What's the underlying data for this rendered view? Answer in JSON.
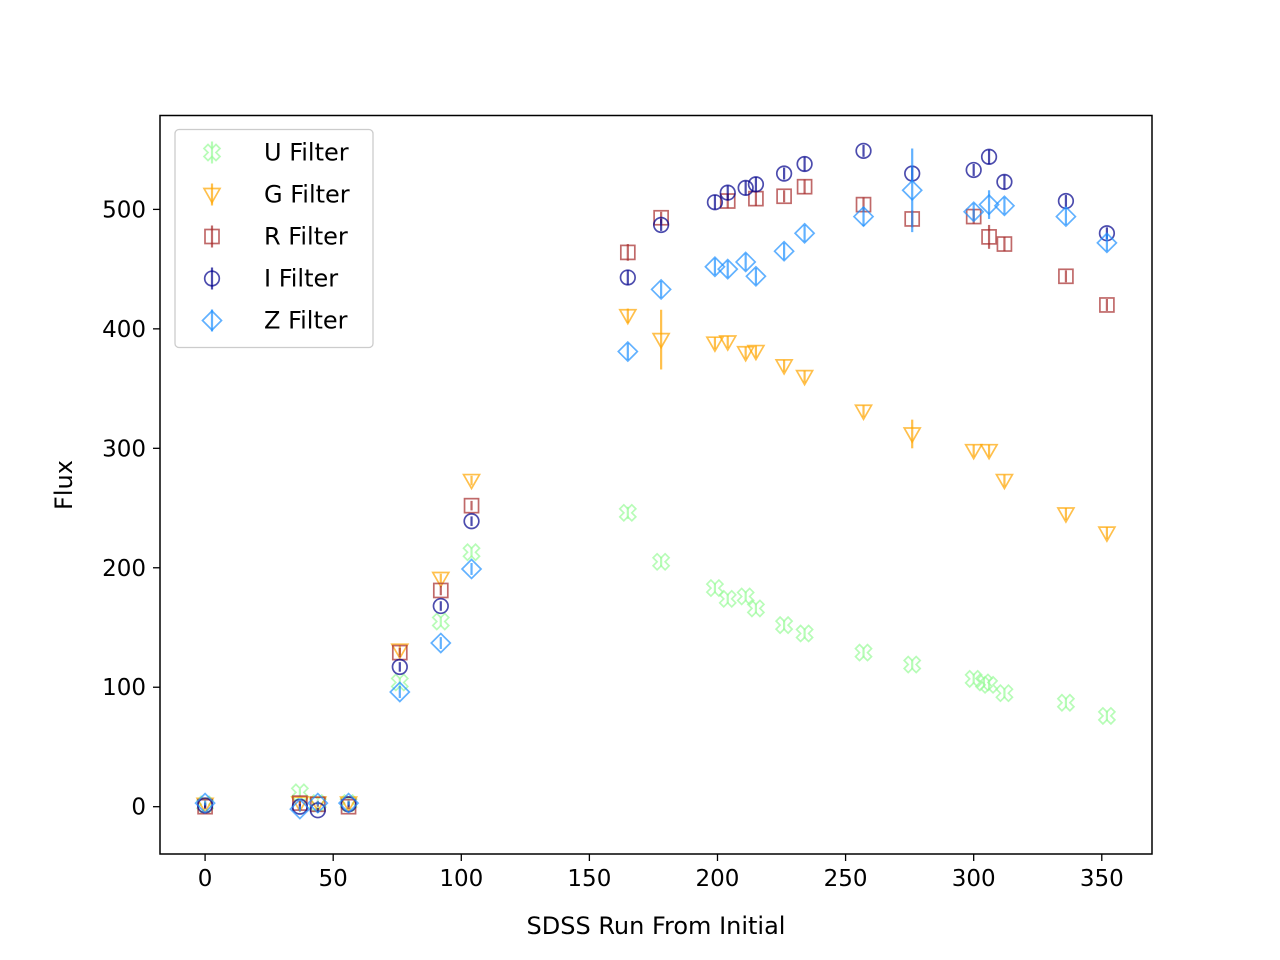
{
  "chart_data": {
    "type": "scatter",
    "title": "",
    "xlabel": "SDSS Run From Initial",
    "ylabel": "Flux",
    "xlim": [
      -17.6,
      369.6
    ],
    "ylim": [
      -39.6,
      578.6
    ],
    "x_ticks": [
      0,
      50,
      100,
      150,
      200,
      250,
      300,
      350
    ],
    "y_ticks": [
      0,
      100,
      200,
      300,
      400,
      500
    ],
    "grid": false,
    "legend_position": "upper-left",
    "series": [
      {
        "name": "U Filter",
        "marker": "x-filled",
        "color": "#98fb98",
        "x": [
          0,
          37,
          44,
          56,
          76,
          92,
          104,
          165,
          178,
          199,
          204,
          211,
          215,
          226,
          234,
          257,
          276,
          300,
          304,
          306,
          312,
          336,
          352
        ],
        "y": [
          2,
          12,
          3,
          3,
          104,
          155,
          213,
          246,
          205,
          183,
          174,
          176,
          166,
          152,
          145,
          129,
          119,
          107,
          104,
          102,
          95,
          87,
          76
        ],
        "err": [
          2,
          3,
          2,
          2,
          4,
          4,
          4,
          5,
          4,
          4,
          4,
          4,
          4,
          4,
          4,
          4,
          4,
          4,
          4,
          4,
          4,
          4,
          4
        ]
      },
      {
        "name": "G Filter",
        "marker": "triangle-down",
        "color": "#ffa500",
        "x": [
          0,
          37,
          44,
          56,
          76,
          92,
          104,
          165,
          178,
          199,
          204,
          211,
          215,
          226,
          234,
          257,
          276,
          300,
          306,
          312,
          336,
          352
        ],
        "y": [
          2,
          3,
          3,
          3,
          131,
          191,
          273,
          411,
          391,
          388,
          389,
          380,
          381,
          369,
          360,
          331,
          312,
          298,
          298,
          273,
          245,
          229
        ],
        "err": [
          2,
          2,
          2,
          2,
          4,
          4,
          4,
          6,
          25,
          5,
          5,
          5,
          5,
          5,
          5,
          5,
          12,
          5,
          5,
          5,
          5,
          5
        ]
      },
      {
        "name": "R Filter",
        "marker": "square",
        "color": "#a52a2a",
        "x": [
          0,
          37,
          44,
          56,
          76,
          92,
          104,
          165,
          178,
          204,
          215,
          226,
          234,
          257,
          276,
          300,
          306,
          312,
          336,
          352
        ],
        "y": [
          0,
          3,
          2,
          0,
          129,
          181,
          252,
          464,
          493,
          507,
          509,
          511,
          519,
          504,
          492,
          494,
          477,
          471,
          444,
          420
        ],
        "err": [
          2,
          2,
          2,
          2,
          4,
          4,
          4,
          7,
          5,
          6,
          6,
          5,
          6,
          6,
          7,
          6,
          10,
          6,
          5,
          5
        ]
      },
      {
        "name": "I Filter",
        "marker": "circle",
        "color": "#00008b",
        "x": [
          0,
          37,
          44,
          56,
          76,
          92,
          104,
          165,
          178,
          199,
          204,
          211,
          215,
          226,
          234,
          257,
          276,
          300,
          306,
          312,
          336,
          352
        ],
        "y": [
          1,
          0,
          -3,
          2,
          117,
          168,
          239,
          443,
          487,
          506,
          514,
          518,
          521,
          530,
          538,
          549,
          530,
          533,
          544,
          523,
          507,
          480
        ],
        "err": [
          2,
          2,
          2,
          2,
          4,
          4,
          4,
          6,
          5,
          6,
          6,
          6,
          6,
          5,
          6,
          5,
          6,
          5,
          6,
          6,
          5,
          5
        ]
      },
      {
        "name": "Z Filter",
        "marker": "diamond",
        "color": "#1e90ff",
        "x": [
          0,
          37,
          44,
          56,
          76,
          92,
          104,
          165,
          178,
          199,
          204,
          211,
          215,
          226,
          234,
          257,
          276,
          300,
          306,
          312,
          336,
          352
        ],
        "y": [
          3,
          -2,
          3,
          3,
          96,
          137,
          199,
          381,
          433,
          452,
          450,
          456,
          444,
          465,
          480,
          494,
          516,
          498,
          504,
          503,
          494,
          472
        ],
        "err": [
          2,
          2,
          2,
          2,
          5,
          5,
          5,
          7,
          7,
          7,
          7,
          7,
          7,
          7,
          7,
          8,
          35,
          7,
          12,
          7,
          7,
          7
        ]
      }
    ]
  }
}
